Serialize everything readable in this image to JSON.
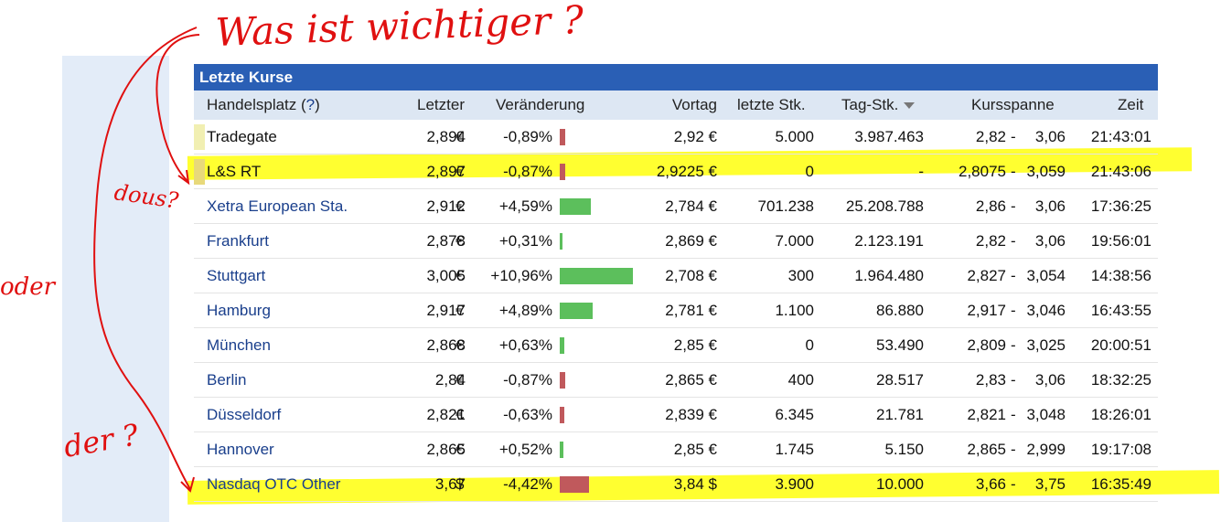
{
  "annotations": {
    "question": "Was ist wichtiger ?",
    "left_label": "oder",
    "upper_label": "dous?",
    "lower_label": "der ?"
  },
  "table": {
    "title": "Letzte Kurse",
    "headers": {
      "market": "Handelsplatz (",
      "help": "?",
      "market_close": ")",
      "last": "Letzter",
      "change": "Veränderung",
      "previous": "Vortag",
      "last_qty": "letzte Stk.",
      "day_qty": "Tag-Stk.",
      "range": "Kursspanne",
      "time": "Zeit"
    },
    "colors": {
      "positive": "#5cbf5c",
      "negative": "#c0595c",
      "title_bar": "#2a5fb5",
      "link": "#1a3f8c"
    },
    "rows": [
      {
        "name": "Tradegate",
        "last": "2,894",
        "cur": "€",
        "change": "-0,89%",
        "change_value": -0.89,
        "prev": "2,92 €",
        "stk": "5.000",
        "tag": "3.987.463",
        "lo": "2,82",
        "hi": "3,06",
        "time": "21:43:01"
      },
      {
        "name": "L&S RT",
        "last": "2,897",
        "cur": "€",
        "change": "-0,87%",
        "change_value": -0.87,
        "prev": "2,9225 €",
        "stk": "0",
        "tag": "-",
        "lo": "2,8075",
        "hi": "3,059",
        "time": "21:43:06"
      },
      {
        "name": "Xetra European Sta.",
        "last": "2,912",
        "cur": "€",
        "change": "+4,59%",
        "change_value": 4.59,
        "prev": "2,784 €",
        "stk": "701.238",
        "tag": "25.208.788",
        "lo": "2,86",
        "hi": "3,06",
        "time": "17:36:25"
      },
      {
        "name": "Frankfurt",
        "last": "2,878",
        "cur": "€",
        "change": "+0,31%",
        "change_value": 0.31,
        "prev": "2,869 €",
        "stk": "7.000",
        "tag": "2.123.191",
        "lo": "2,82",
        "hi": "3,06",
        "time": "19:56:01"
      },
      {
        "name": "Stuttgart",
        "last": "3,005",
        "cur": "€",
        "change": "+10,96%",
        "change_value": 10.96,
        "prev": "2,708 €",
        "stk": "300",
        "tag": "1.964.480",
        "lo": "2,827",
        "hi": "3,054",
        "time": "14:38:56"
      },
      {
        "name": "Hamburg",
        "last": "2,917",
        "cur": "€",
        "change": "+4,89%",
        "change_value": 4.89,
        "prev": "2,781 €",
        "stk": "1.100",
        "tag": "86.880",
        "lo": "2,917",
        "hi": "3,046",
        "time": "16:43:55"
      },
      {
        "name": "München",
        "last": "2,868",
        "cur": "€",
        "change": "+0,63%",
        "change_value": 0.63,
        "prev": "2,85 €",
        "stk": "0",
        "tag": "53.490",
        "lo": "2,809",
        "hi": "3,025",
        "time": "20:00:51"
      },
      {
        "name": "Berlin",
        "last": "2,84",
        "cur": "€",
        "change": "-0,87%",
        "change_value": -0.87,
        "prev": "2,865 €",
        "stk": "400",
        "tag": "28.517",
        "lo": "2,83",
        "hi": "3,06",
        "time": "18:32:25"
      },
      {
        "name": "Düsseldorf",
        "last": "2,821",
        "cur": "€",
        "change": "-0,63%",
        "change_value": -0.63,
        "prev": "2,839 €",
        "stk": "6.345",
        "tag": "21.781",
        "lo": "2,821",
        "hi": "3,048",
        "time": "18:26:01"
      },
      {
        "name": "Hannover",
        "last": "2,865",
        "cur": "€",
        "change": "+0,52%",
        "change_value": 0.52,
        "prev": "2,85 €",
        "stk": "1.745",
        "tag": "5.150",
        "lo": "2,865",
        "hi": "2,999",
        "time": "19:17:08"
      },
      {
        "name": "Nasdaq OTC Other",
        "last": "3,67",
        "cur": "$",
        "change": "-4,42%",
        "change_value": -4.42,
        "prev": "3,84 $",
        "stk": "3.900",
        "tag": "10.000",
        "lo": "3,66",
        "hi": "3,75",
        "time": "16:35:49"
      }
    ]
  }
}
